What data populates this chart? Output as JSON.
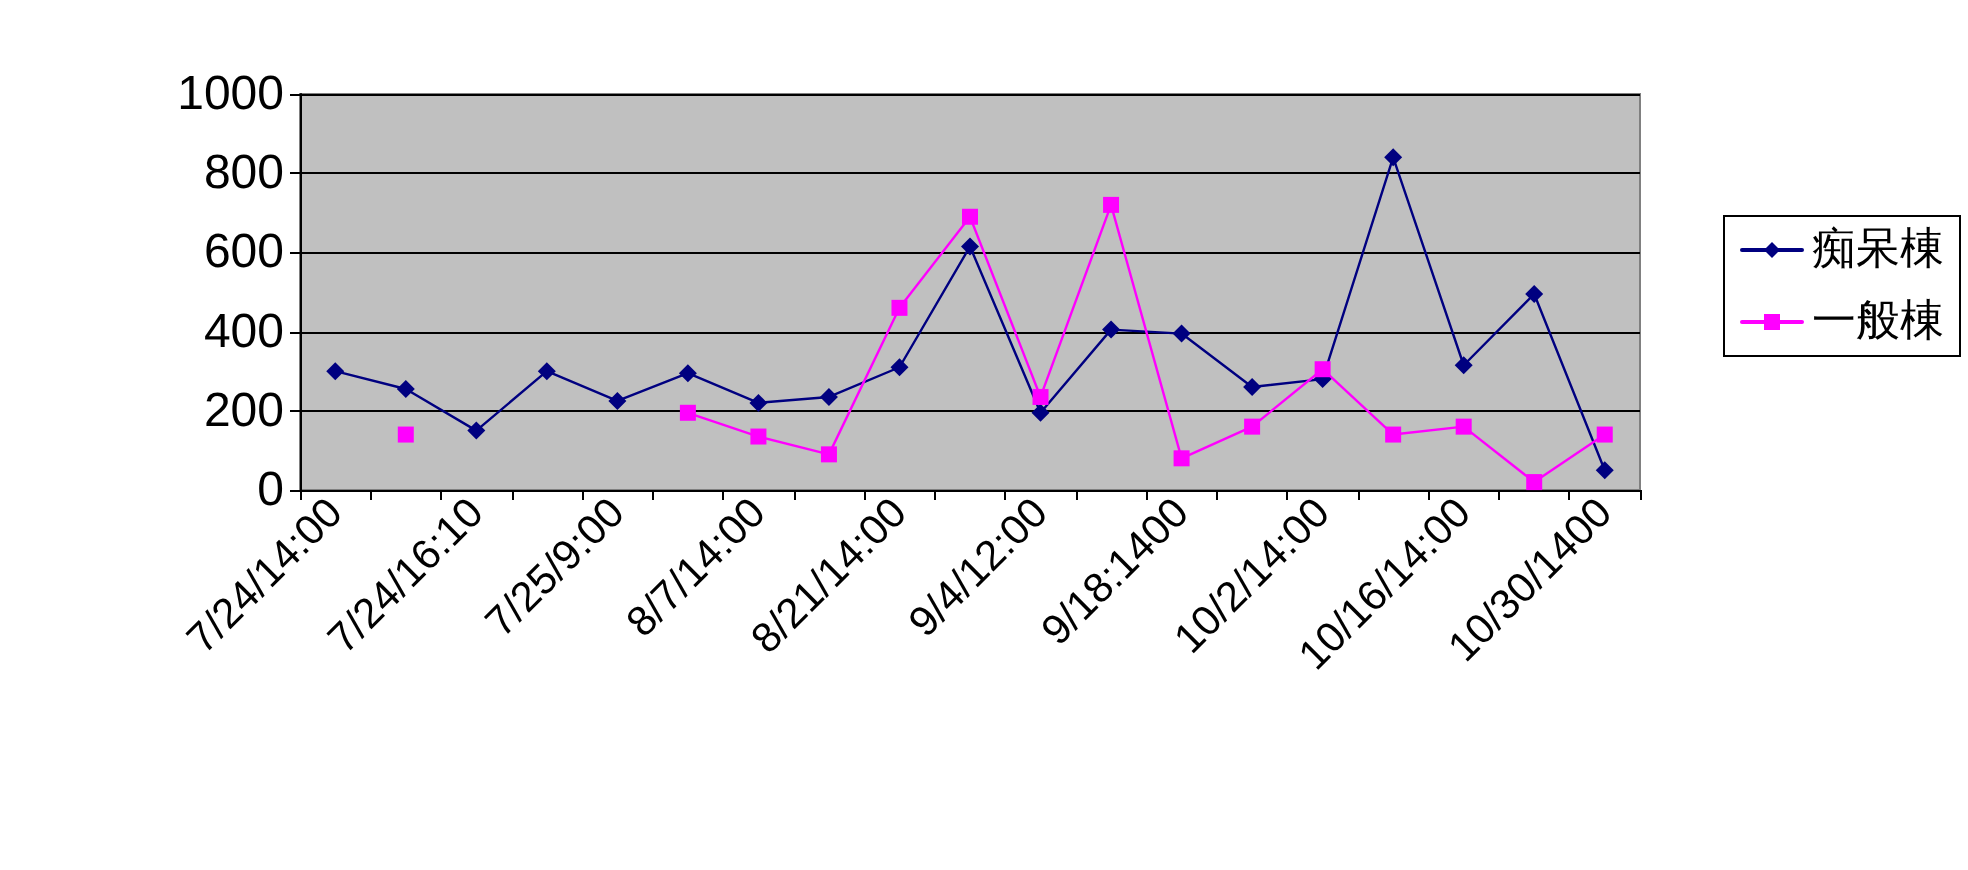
{
  "chart_data": {
    "type": "line",
    "categories": [
      "7/24/14:00",
      null,
      "7/24/16:10",
      null,
      "7/25/9:00",
      null,
      "8/7/14:00",
      null,
      "8/21/14:00",
      null,
      "9/4/12:00",
      null,
      "9/18:1400",
      null,
      "10/2/14:00",
      null,
      "10/16/14:00",
      null,
      "10/30/1400"
    ],
    "series": [
      {
        "name": "痴呆棟",
        "color": "#000080",
        "marker": "diamond",
        "values": [
          300,
          255,
          150,
          300,
          225,
          295,
          220,
          235,
          310,
          615,
          195,
          405,
          395,
          260,
          280,
          840,
          315,
          495,
          50
        ]
      },
      {
        "name": "一般棟",
        "color": "#ff00ff",
        "marker": "square",
        "values": [
          null,
          140,
          null,
          null,
          null,
          195,
          135,
          90,
          460,
          690,
          235,
          720,
          80,
          160,
          305,
          140,
          160,
          20,
          140
        ]
      }
    ],
    "ylim": [
      0,
      1000
    ],
    "yticks": [
      0,
      200,
      400,
      600,
      800,
      1000
    ],
    "grid": "y",
    "legend": "right",
    "line_style": "solid"
  }
}
